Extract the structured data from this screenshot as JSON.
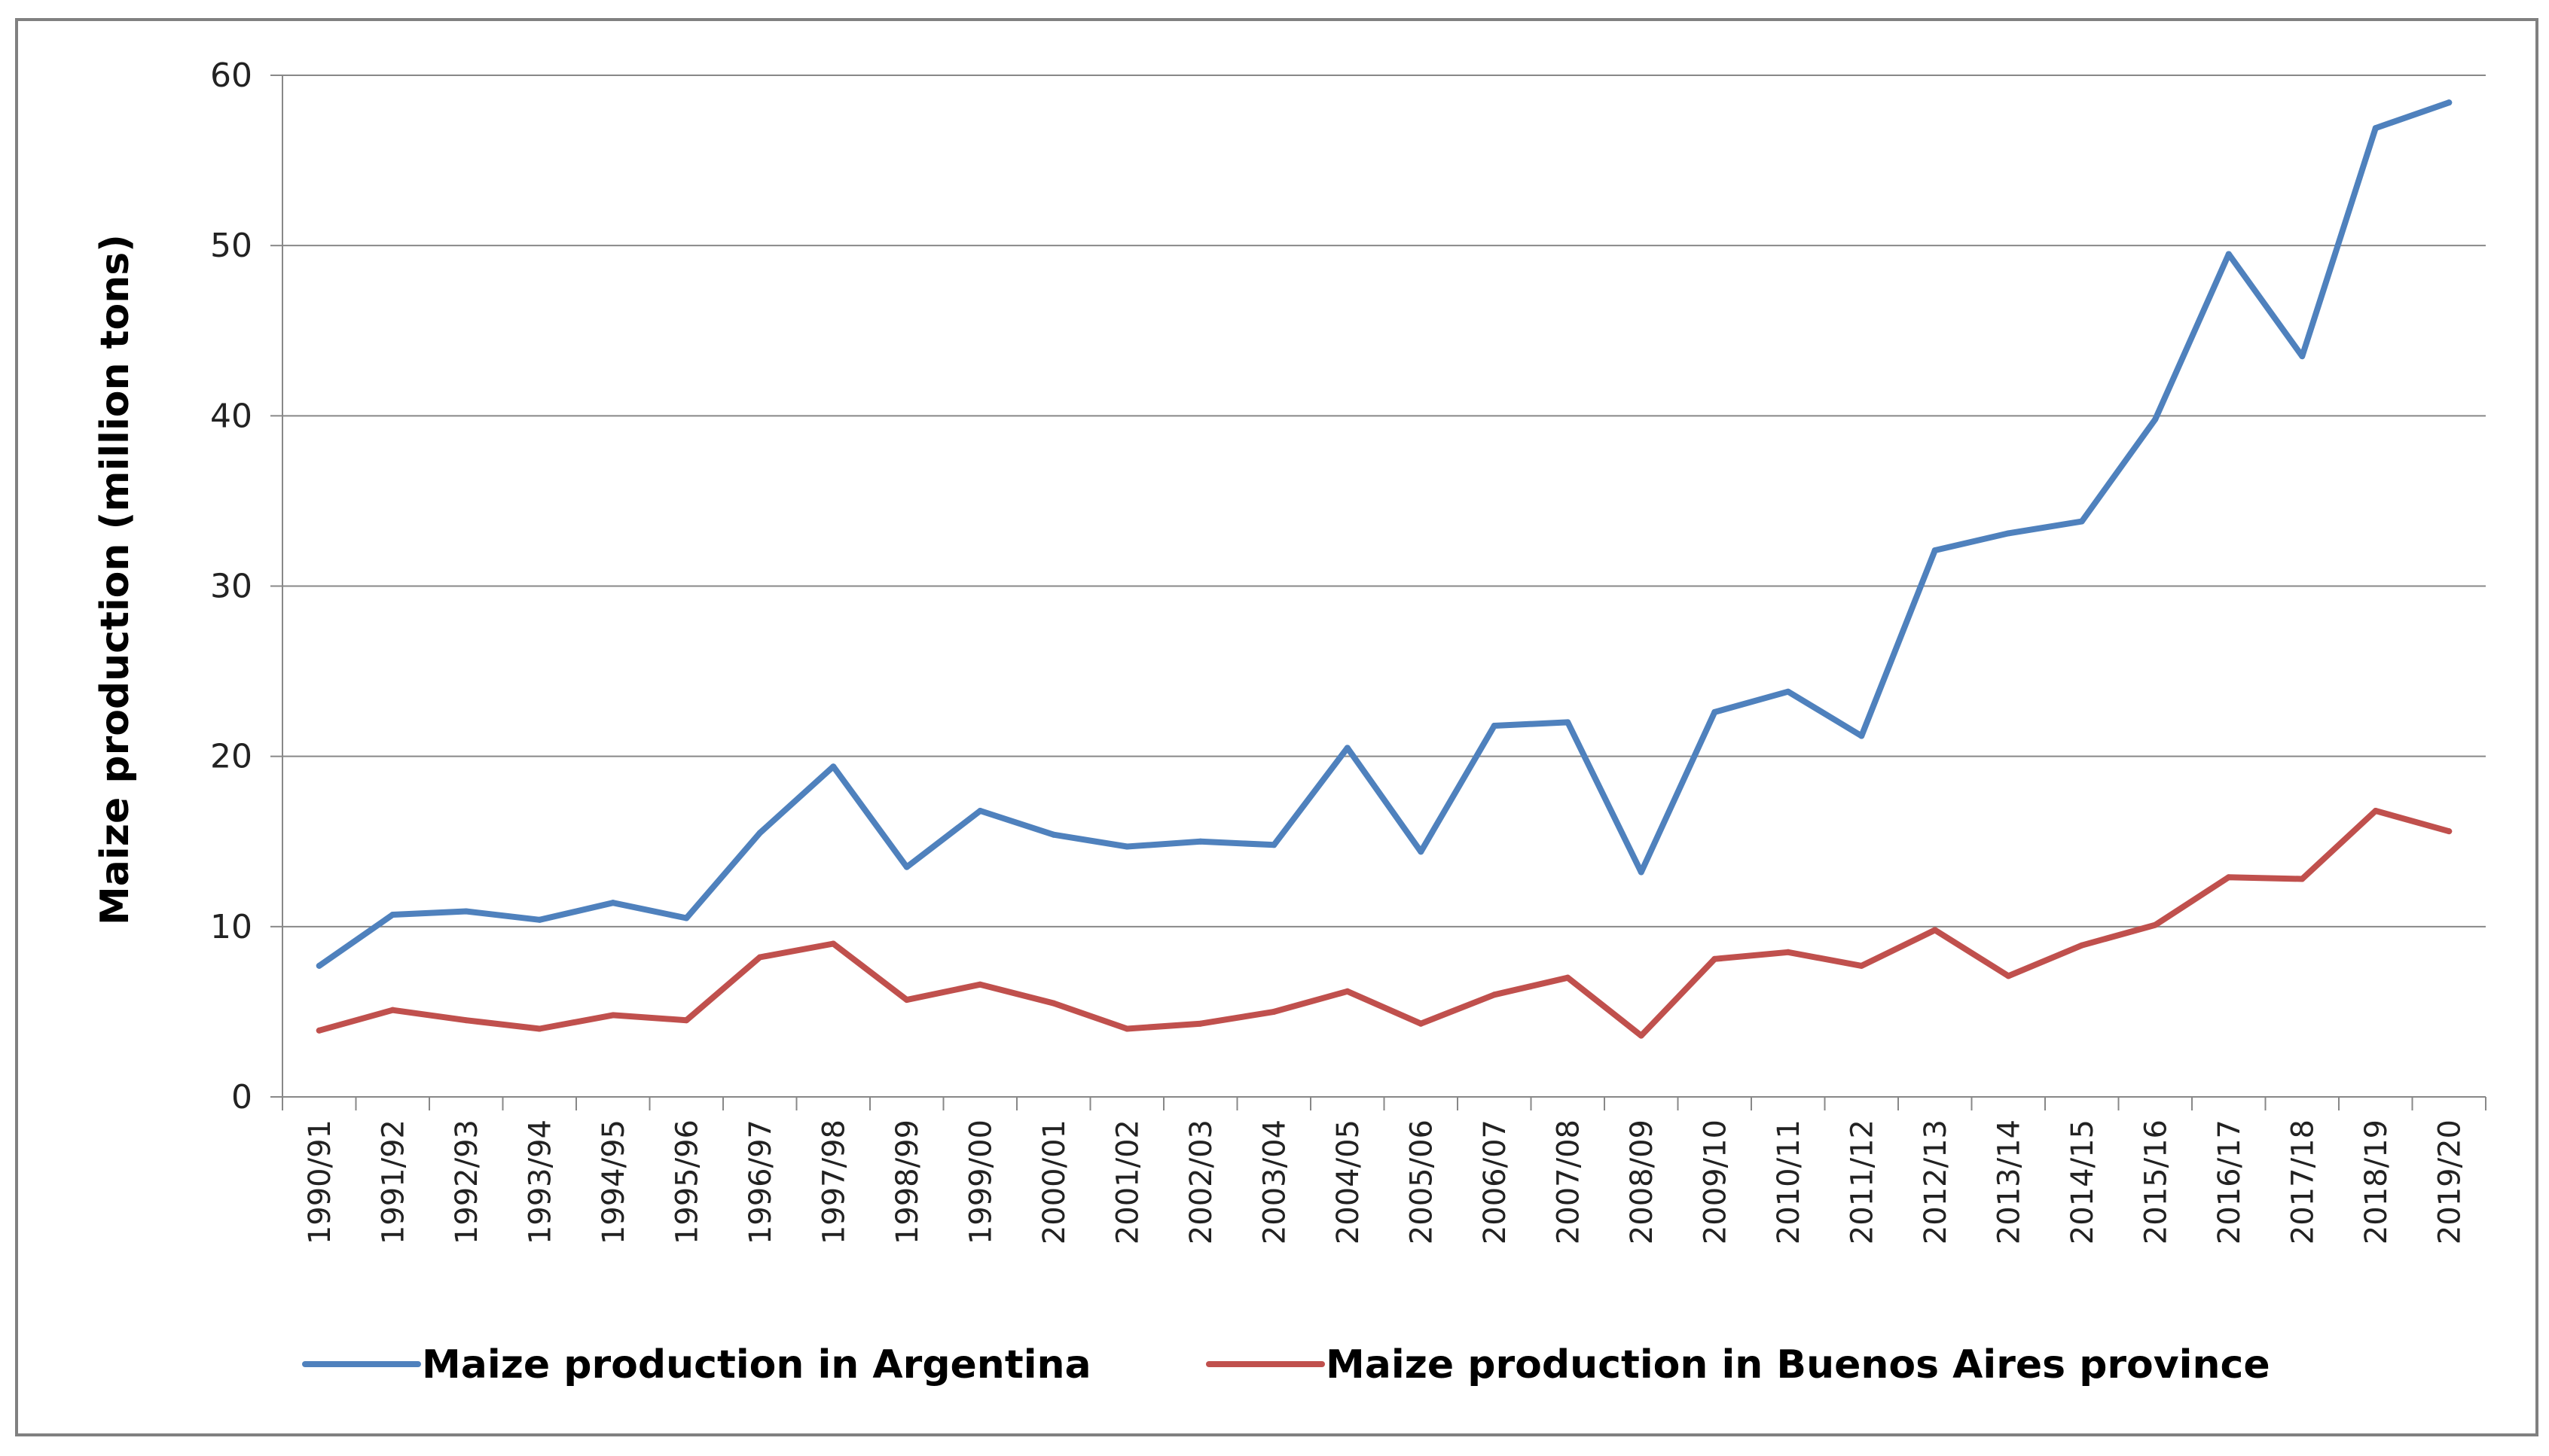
{
  "chart_data": {
    "type": "line",
    "title": "",
    "xlabel": "",
    "ylabel": "Maize production (million tons)",
    "ylim": [
      0,
      60
    ],
    "yticks": [
      0,
      10,
      20,
      30,
      40,
      50,
      60
    ],
    "grid": "horizontal",
    "legend_position": "bottom",
    "categories": [
      "1990/91",
      "1991/92",
      "1992/93",
      "1993/94",
      "1994/95",
      "1995/96",
      "1996/97",
      "1997/98",
      "1998/99",
      "1999/00",
      "2000/01",
      "2001/02",
      "2002/03",
      "2003/04",
      "2004/05",
      "2005/06",
      "2006/07",
      "2007/08",
      "2008/09",
      "2009/10",
      "2010/11",
      "2011/12",
      "2012/13",
      "2013/14",
      "2014/15",
      "2015/16",
      "2016/17",
      "2017/18",
      "2018/19",
      "2019/20"
    ],
    "series": [
      {
        "name": "Maize production in Argentina",
        "color": "#4F81BD",
        "values": [
          7.7,
          10.7,
          10.9,
          10.4,
          11.4,
          10.5,
          15.5,
          19.4,
          13.5,
          16.8,
          15.4,
          14.7,
          15.0,
          14.8,
          20.5,
          14.4,
          21.8,
          22.0,
          13.2,
          22.6,
          23.8,
          21.2,
          32.1,
          33.1,
          33.8,
          39.8,
          49.5,
          43.5,
          56.9,
          58.4
        ]
      },
      {
        "name": "Maize production in Buenos Aires province",
        "color": "#C0504D",
        "values": [
          3.9,
          5.1,
          4.5,
          4.0,
          4.8,
          4.5,
          8.2,
          9.0,
          5.7,
          6.6,
          5.5,
          4.0,
          4.3,
          5.0,
          6.2,
          4.3,
          6.0,
          7.0,
          3.6,
          8.1,
          8.5,
          7.7,
          9.8,
          7.1,
          8.9,
          10.1,
          12.9,
          12.8,
          16.8,
          15.6
        ]
      }
    ]
  }
}
